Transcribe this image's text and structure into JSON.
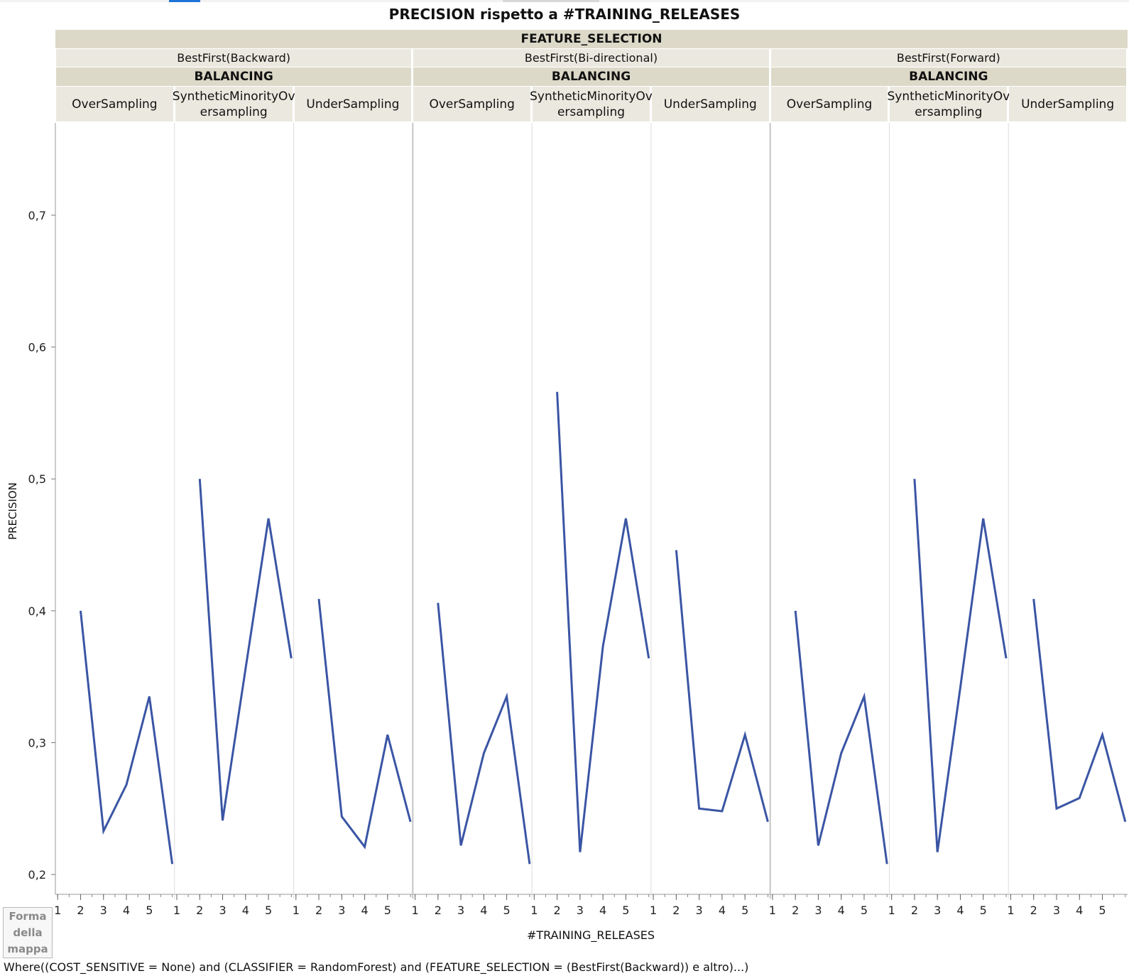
{
  "title": "PRECISION rispetto a #TRAINING_RELEASES",
  "header": {
    "group_title": "FEATURE_SELECTION",
    "sub_title": "BALANCING",
    "groups": [
      "BestFirst(Backward)",
      "BestFirst(Bi-directional)",
      "BestFirst(Forward)"
    ],
    "subgroups": [
      "OverSampling",
      "SyntheticMinorityOversampling",
      "UnderSampling"
    ],
    "subgroup_display": [
      "OverSampling",
      "SyntheticMinorityOv\nersampling",
      "UnderSampling"
    ]
  },
  "map_shape_label": "Forma della mappa",
  "where_clause": "Where((COST_SENSITIVE = None) and (CLASSIFIER = RandomForest) and (FEATURE_SELECTION = (BestFirst(Backward)) e altro)...)",
  "colors": {
    "line": "#3a55a4",
    "header_dark": "#ddd9c9",
    "header_light": "#ebe9df"
  },
  "chart_data": {
    "type": "line",
    "title": "PRECISION rispetto a #TRAINING_RELEASES",
    "xlabel": "#TRAINING_RELEASES",
    "ylabel": "PRECISION",
    "y_ticks": [
      "0,2",
      "0,3",
      "0,4",
      "0,5",
      "0,6",
      "0,7"
    ],
    "y_tick_values": [
      0.2,
      0.3,
      0.4,
      0.5,
      0.6,
      0.7
    ],
    "ylim": [
      0.185,
      0.77
    ],
    "x_ticks": [
      "1",
      "2",
      "3",
      "4",
      "5"
    ],
    "x_tick_values": [
      1,
      2,
      3,
      4,
      5
    ],
    "xlim": [
      0.9,
      6.1
    ],
    "grid": false,
    "panels": [
      {
        "feature_selection": "BestFirst(Backward)",
        "balancing": "OverSampling",
        "x": [
          2,
          3,
          4,
          5,
          6
        ],
        "y": [
          0.4,
          0.233,
          0.268,
          0.335,
          0.208
        ]
      },
      {
        "feature_selection": "BestFirst(Backward)",
        "balancing": "SyntheticMinorityOversampling",
        "x": [
          2,
          3,
          4,
          5,
          6
        ],
        "y": [
          0.5,
          0.241,
          0.356,
          0.47,
          0.364
        ]
      },
      {
        "feature_selection": "BestFirst(Backward)",
        "balancing": "UnderSampling",
        "x": [
          2,
          3,
          4,
          5,
          6
        ],
        "y": [
          0.409,
          0.244,
          0.221,
          0.306,
          0.24
        ]
      },
      {
        "feature_selection": "BestFirst(Bi-directional)",
        "balancing": "OverSampling",
        "x": [
          2,
          3,
          4,
          5,
          6
        ],
        "y": [
          0.406,
          0.222,
          0.292,
          0.335,
          0.208
        ]
      },
      {
        "feature_selection": "BestFirst(Bi-directional)",
        "balancing": "SyntheticMinorityOversampling",
        "x": [
          2,
          3,
          4,
          5,
          6
        ],
        "y": [
          0.566,
          0.217,
          0.373,
          0.47,
          0.364
        ]
      },
      {
        "feature_selection": "BestFirst(Bi-directional)",
        "balancing": "UnderSampling",
        "x": [
          2,
          3,
          4,
          5,
          6
        ],
        "y": [
          0.446,
          0.25,
          0.248,
          0.306,
          0.24
        ]
      },
      {
        "feature_selection": "BestFirst(Forward)",
        "balancing": "OverSampling",
        "x": [
          2,
          3,
          4,
          5,
          6
        ],
        "y": [
          0.4,
          0.222,
          0.292,
          0.335,
          0.208
        ]
      },
      {
        "feature_selection": "BestFirst(Forward)",
        "balancing": "SyntheticMinorityOversampling",
        "x": [
          2,
          3,
          4,
          5,
          6
        ],
        "y": [
          0.5,
          0.217,
          0.342,
          0.47,
          0.364
        ]
      },
      {
        "feature_selection": "BestFirst(Forward)",
        "balancing": "UnderSampling",
        "x": [
          2,
          3,
          4,
          5,
          6
        ],
        "y": [
          0.409,
          0.25,
          0.258,
          0.306,
          0.24
        ]
      }
    ]
  }
}
